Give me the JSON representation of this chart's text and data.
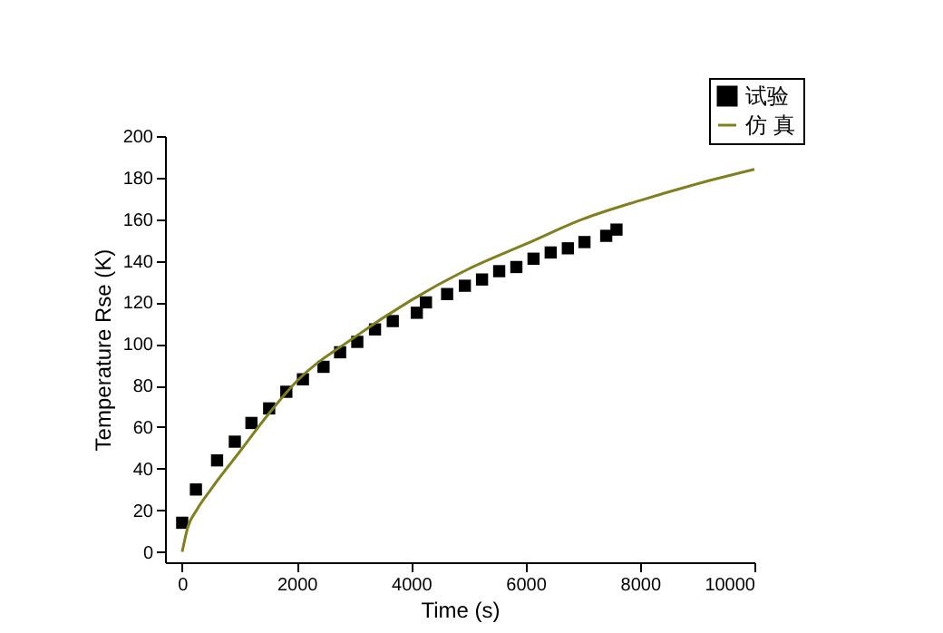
{
  "chart_data": {
    "type": "scatter",
    "xlabel": "Time  (s)",
    "ylabel": "Temperature Rse (K)",
    "xlim": [
      -300,
      10000
    ],
    "xticks": [
      0,
      2000,
      4000,
      6000,
      8000,
      10000
    ],
    "ylim": [
      -5,
      200
    ],
    "yticks": [
      0,
      20,
      40,
      60,
      80,
      100,
      120,
      140,
      160,
      180,
      200
    ],
    "grid": false,
    "legend": "top right",
    "series": [
      {
        "name": "试验",
        "marker": "square",
        "color": "#000000",
        "x": [
          0,
          240,
          610,
          920,
          1210,
          1520,
          1820,
          2110,
          2470,
          2760,
          3060,
          3370,
          3680,
          4100,
          4260,
          4630,
          4940,
          5240,
          5540,
          5840,
          6140,
          6440,
          6740,
          7030,
          7410,
          7590
        ],
        "values": [
          14,
          30,
          44,
          53,
          62,
          69,
          77,
          83,
          89,
          96,
          101,
          107,
          111,
          115,
          120,
          124,
          128,
          131,
          135,
          137,
          141,
          144,
          146,
          149,
          152,
          155
        ]
      },
      {
        "name": "仿 真",
        "type": "line",
        "marker": "none",
        "line_style": "solid",
        "color": "#808020",
        "x": [
          0,
          100,
          250,
          500,
          1000,
          1500,
          2000,
          3000,
          4000,
          5000,
          6000,
          7000,
          8000,
          9000,
          10000
        ],
        "values": [
          0,
          12,
          20,
          30,
          48,
          66,
          82,
          103,
          121,
          136,
          148,
          160,
          169,
          177,
          184
        ]
      }
    ]
  }
}
